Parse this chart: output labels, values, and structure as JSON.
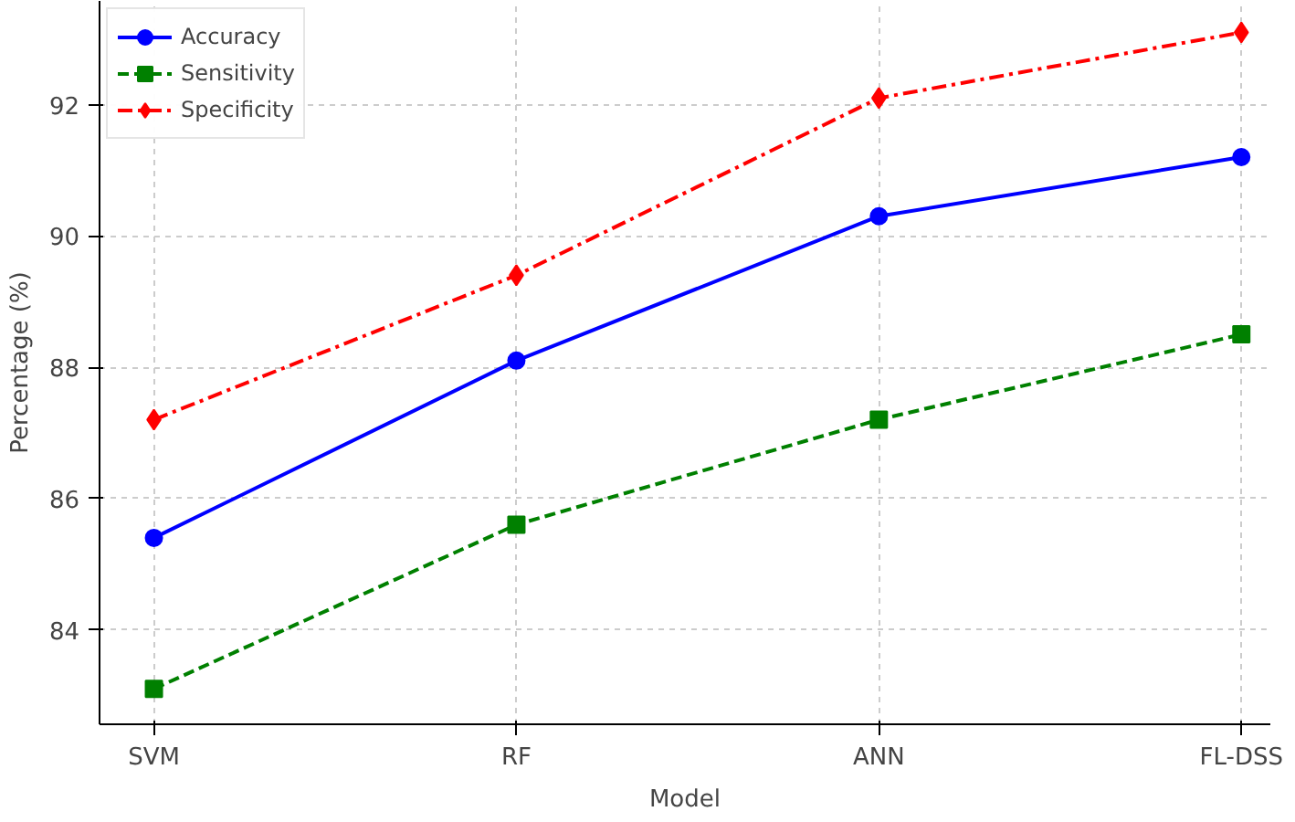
{
  "chart_data": {
    "type": "line",
    "xlabel": "Model",
    "ylabel": "Percentage (%)",
    "categories": [
      "SVM",
      "RF",
      "ANN",
      "FL-DSS"
    ],
    "series": [
      {
        "name": "Accuracy",
        "color": "#0000ff",
        "values": [
          85.4,
          88.1,
          90.3,
          91.2
        ],
        "marker": "circle",
        "line_style": "solid"
      },
      {
        "name": "Sensitivity",
        "color": "#008000",
        "values": [
          83.1,
          85.6,
          87.2,
          88.5
        ],
        "marker": "square",
        "line_style": "dashed"
      },
      {
        "name": "Specificity",
        "color": "#ff0000",
        "values": [
          87.2,
          89.4,
          92.1,
          93.1
        ],
        "marker": "diamond",
        "line_style": "dashdot"
      }
    ],
    "ylim": [
      82.56,
      93.58
    ],
    "yticks": [
      84,
      86,
      88,
      90,
      92
    ],
    "grid": true,
    "legend": "top left"
  }
}
